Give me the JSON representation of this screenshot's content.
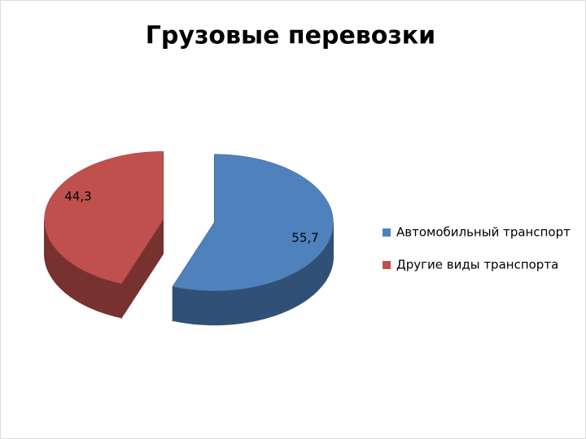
{
  "chart_data": {
    "type": "pie",
    "title": "Грузовые перевозки",
    "categories": [
      "Автомобильный транспорт",
      "Другие виды транспорта"
    ],
    "values": [
      55.7,
      44.3
    ],
    "value_labels": [
      "55,7",
      "44,3"
    ],
    "colors": [
      "#4f81bd",
      "#c0504d"
    ],
    "legend": "right"
  }
}
